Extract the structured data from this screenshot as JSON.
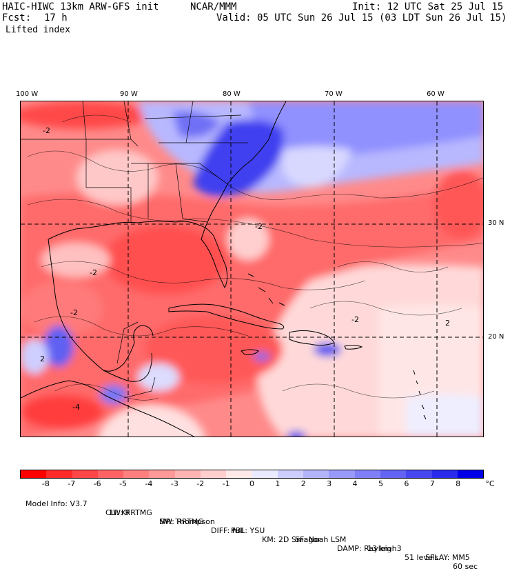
{
  "header": {
    "model_title": "HAIC-HIWC 13km ARW-GFS init",
    "center": "NCAR/MMM",
    "init": "Init: 12 UTC Sat 25 Jul 15",
    "fcst_label": "Fcst:",
    "fcst_value": "17 h",
    "valid": "Valid: 05 UTC Sun 26 Jul 15 (03 LDT Sun 26 Jul 15)",
    "field": "Lifted index"
  },
  "map": {
    "longitudes": [
      "100 W",
      "90 W",
      "80 W",
      "70 W",
      "60 W"
    ],
    "latitudes": [
      "30 N",
      "20 N"
    ],
    "contour_labels": [
      "-2",
      "-4",
      "2"
    ]
  },
  "colorbar": {
    "unit": "°C",
    "ticks": [
      "-8",
      "-7",
      "-6",
      "-5",
      "-4",
      "-3",
      "-2",
      "-1",
      "0",
      "1",
      "2",
      "3",
      "4",
      "5",
      "6",
      "7",
      "8"
    ],
    "colors": [
      "#ff0000",
      "#ff2a2a",
      "#ff4747",
      "#ff6363",
      "#ff7f7f",
      "#ff9999",
      "#ffb4b4",
      "#ffcece",
      "#ffeaea",
      "#eaeaff",
      "#cecefe",
      "#b4b4fc",
      "#9999fa",
      "#7f7ff7",
      "#6363f4",
      "#4747f0",
      "#2a2aec",
      "#0000e6"
    ]
  },
  "model_info": {
    "line1": [
      "Model Info: V3.7",
      "CU: KF",
      "MP: Thompson",
      "PBL: YSU",
      "SF: Noah LSM",
      "13 km",
      "51 levels",
      "60 sec"
    ],
    "line2": [
      "LW: RRTMG",
      "SW: RRTMG",
      "DIFF: full",
      "KM: 2D Smagor",
      "DAMP: Rayleigh3",
      "SFLAY: MM5"
    ]
  }
}
